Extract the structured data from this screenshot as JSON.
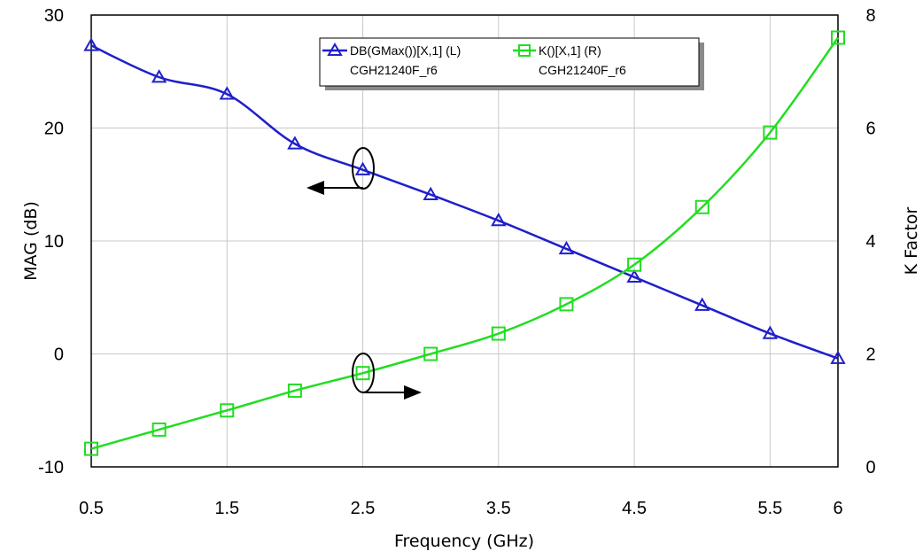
{
  "chart_data": {
    "type": "line",
    "xlabel": "Frequency (GHz)",
    "ylabel_left": "MAG (dB)",
    "ylabel_right": "K Factor",
    "xlim": [
      0.5,
      6
    ],
    "ylim_left": [
      -10,
      30
    ],
    "ylim_right": [
      0,
      8
    ],
    "x_ticks": [
      "0.5",
      "1.5",
      "2.5",
      "3.5",
      "4.5",
      "5.5",
      "6"
    ],
    "y_left_ticks": [
      "30",
      "20",
      "10",
      "0",
      "-10"
    ],
    "y_right_ticks": [
      "8",
      "6",
      "4",
      "2",
      "0"
    ],
    "grid": true,
    "legend_position": "top-center",
    "series": [
      {
        "name": "DB(GMax())[X,1] (L)",
        "subtitle": "CGH21240F_r6",
        "axis": "left",
        "color": "#1f1fcc",
        "marker": "triangle",
        "x": [
          0.5,
          1.0,
          1.5,
          2.0,
          2.5,
          3.0,
          3.5,
          4.0,
          4.5,
          5.0,
          5.5,
          6.0
        ],
        "values": [
          27.3,
          24.5,
          23.0,
          18.6,
          16.3,
          14.1,
          11.8,
          9.3,
          6.8,
          4.3,
          1.8,
          -0.4
        ]
      },
      {
        "name": "K()[X,1] (R)",
        "subtitle": "CGH21240F_r6",
        "axis": "right",
        "color": "#22dd22",
        "marker": "square",
        "x": [
          0.5,
          1.0,
          1.5,
          2.0,
          2.5,
          3.0,
          3.5,
          4.0,
          4.5,
          5.0,
          5.5,
          6.0
        ],
        "values": [
          0.32,
          0.66,
          1.0,
          1.35,
          1.66,
          2.0,
          2.36,
          2.88,
          3.58,
          4.6,
          5.92,
          7.6
        ]
      }
    ]
  }
}
